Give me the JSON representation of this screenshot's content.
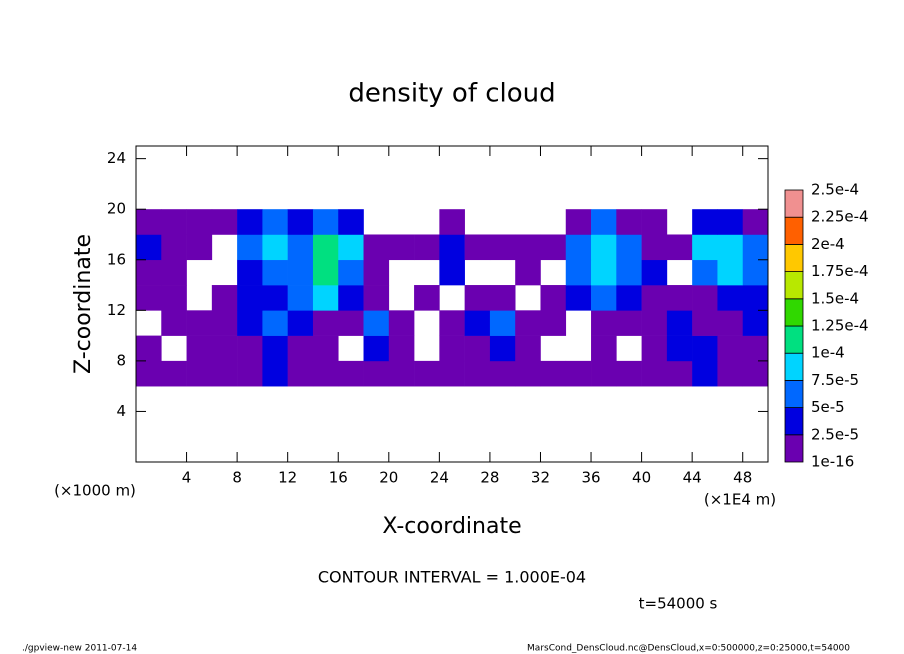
{
  "chart_data": {
    "type": "contour",
    "title": "density of cloud",
    "xlabel": "X-coordinate",
    "ylabel": "Z-coordinate",
    "xunit": "(×1000 m)",
    "xscale_note": "(×1E4 m)",
    "contour_interval": "CONTOUR INTERVAL = 1.000E-04",
    "time_label": "t=54000 s",
    "footer_left": "./gpview-new  2011-07-14",
    "footer_right": "MarsCond_DensCloud.nc@DensCloud,x=0:500000,z=0:25000,t=54000",
    "xlim": [
      0,
      50
    ],
    "ylim": [
      0,
      25
    ],
    "xticks": [
      4,
      8,
      12,
      16,
      20,
      24,
      28,
      32,
      36,
      40,
      44,
      48
    ],
    "yticks": [
      4,
      8,
      12,
      16,
      20,
      24
    ],
    "levels": [
      1e-16,
      {
        "value": 2.5e-05,
        "label": "2.5e-5"
      },
      {
        "value": 5e-05,
        "label": "5e-5"
      },
      {
        "value": 7.5e-05,
        "label": "7.5e-5"
      },
      {
        "value": 0.0001,
        "label": "1e-4"
      },
      {
        "value": 0.000125,
        "label": "1.25e-4"
      },
      {
        "value": 0.00015,
        "label": "1.5e-4"
      },
      {
        "value": 0.000175,
        "label": "1.75e-4"
      },
      {
        "value": 0.0002,
        "label": "2e-4"
      },
      {
        "value": 0.000225,
        "label": "2.25e-4"
      },
      {
        "value": 0.00025,
        "label": "2.5e-4"
      }
    ],
    "colors": [
      "#6a00b0",
      "#0000e0",
      "#0068ff",
      "#00d4ff",
      "#00e080",
      "#30d800",
      "#b8e800",
      "#ffc800",
      "#ff6000",
      "#f09090"
    ],
    "x": [
      1,
      3,
      5,
      7,
      9,
      11,
      13,
      15,
      17,
      19,
      21,
      23,
      25,
      27,
      29,
      31,
      33,
      35,
      37,
      39,
      41,
      43,
      45,
      47,
      49
    ],
    "z": [
      7,
      9,
      11,
      13,
      15,
      17,
      19
    ],
    "values": [
      [
        1e-05,
        1e-05,
        1e-05,
        1e-05,
        1e-05,
        3e-05,
        1e-05,
        1e-05,
        1e-05,
        1e-05,
        1e-05,
        1e-05,
        1e-05,
        1e-05,
        1e-05,
        1e-05,
        1e-05,
        1e-05,
        1e-05,
        1e-05,
        1e-05,
        1e-05,
        3e-05,
        1e-05,
        1e-05
      ],
      [
        1e-05,
        null,
        1e-05,
        1e-05,
        1e-05,
        3e-05,
        1e-05,
        1e-05,
        null,
        3e-05,
        1e-05,
        null,
        1e-05,
        1e-05,
        3e-05,
        1e-05,
        null,
        null,
        1e-05,
        null,
        1e-05,
        3e-05,
        3e-05,
        1e-05,
        1e-05
      ],
      [
        null,
        1e-05,
        1e-05,
        1e-05,
        3e-05,
        6e-05,
        3e-05,
        1e-05,
        1e-05,
        6e-05,
        1e-05,
        null,
        1e-05,
        3e-05,
        6e-05,
        1e-05,
        1e-05,
        null,
        1e-05,
        1e-05,
        1e-05,
        3e-05,
        1e-05,
        1e-05,
        3e-05
      ],
      [
        1e-05,
        1e-05,
        null,
        1e-05,
        3e-05,
        3e-05,
        6e-05,
        9e-05,
        3e-05,
        1e-05,
        null,
        1e-05,
        null,
        1e-05,
        1e-05,
        null,
        1e-05,
        3e-05,
        6e-05,
        3e-05,
        1e-05,
        1e-05,
        1e-05,
        3e-05,
        3e-05
      ],
      [
        1e-05,
        1e-05,
        null,
        null,
        3e-05,
        6e-05,
        6e-05,
        0.00011,
        6e-05,
        1e-05,
        null,
        null,
        3e-05,
        null,
        null,
        1e-05,
        null,
        6e-05,
        9e-05,
        6e-05,
        3e-05,
        null,
        6e-05,
        9e-05,
        6e-05
      ],
      [
        3e-05,
        1e-05,
        1e-05,
        null,
        6e-05,
        9e-05,
        6e-05,
        0.00011,
        9e-05,
        1e-05,
        1e-05,
        1e-05,
        3e-05,
        1e-05,
        1e-05,
        1e-05,
        1e-05,
        6e-05,
        9e-05,
        6e-05,
        1e-05,
        1e-05,
        9e-05,
        9e-05,
        6e-05
      ],
      [
        1e-05,
        1e-05,
        1e-05,
        1e-05,
        3e-05,
        6e-05,
        3e-05,
        6e-05,
        3e-05,
        null,
        null,
        null,
        1e-05,
        null,
        null,
        null,
        null,
        1e-05,
        6e-05,
        1e-05,
        1e-05,
        null,
        3e-05,
        3e-05,
        1e-05
      ]
    ]
  }
}
